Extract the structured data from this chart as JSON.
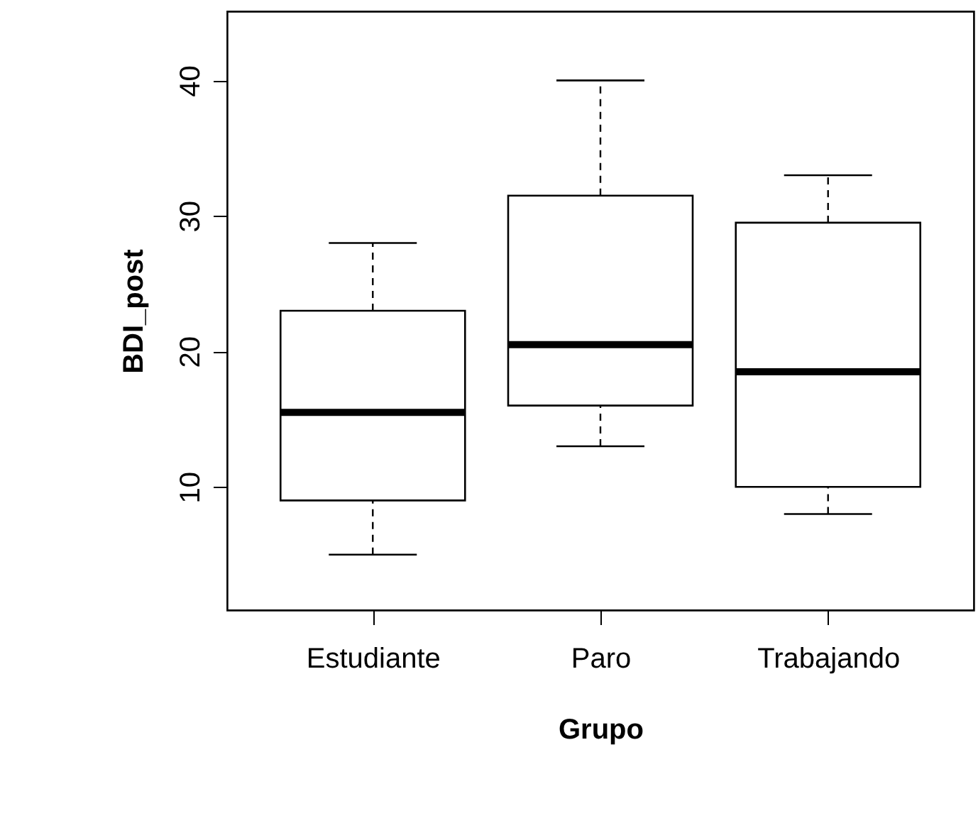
{
  "chart_data": {
    "type": "box",
    "xlabel": "Grupo",
    "ylabel": "BDI_post",
    "categories": [
      "Estudiante",
      "Paro",
      "Trabajando"
    ],
    "boxes": [
      {
        "low": 5,
        "q1": 9,
        "median": 15.5,
        "q3": 23,
        "high": 28
      },
      {
        "low": 13,
        "q1": 16,
        "median": 20.5,
        "q3": 31.5,
        "high": 40
      },
      {
        "low": 8,
        "q1": 10,
        "median": 18.5,
        "q3": 29.5,
        "high": 33
      }
    ],
    "ylim": [
      0.9,
      45.1
    ],
    "yticks": [
      10,
      20,
      30,
      40
    ]
  }
}
